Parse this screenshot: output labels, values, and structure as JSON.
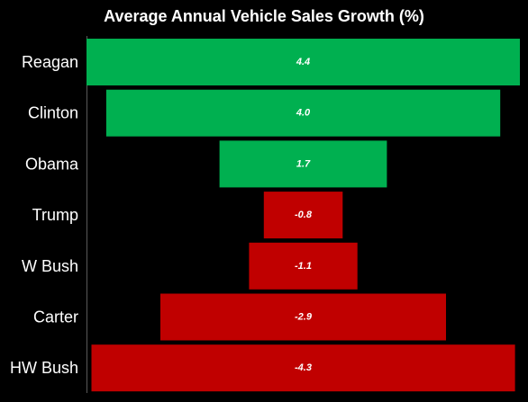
{
  "chart_data": {
    "type": "bar",
    "title": "Average Annual Vehicle Sales Growth (%)",
    "categories": [
      "Reagan",
      "Clinton",
      "Obama",
      "Trump",
      "W Bush",
      "Carter",
      "HW Bush"
    ],
    "values": [
      4.4,
      4.0,
      1.7,
      -0.8,
      -1.1,
      -2.9,
      -4.3
    ],
    "value_labels": [
      "4.4",
      "4.0",
      "1.7",
      "-0.8",
      "-1.1",
      "-2.9",
      "-4.3"
    ],
    "orientation": "horizontal-centered",
    "xlabel": "",
    "ylabel": "",
    "grid": false,
    "legend": "none",
    "colors": {
      "positive": "#00b050",
      "negative": "#c00000",
      "background": "#000000",
      "text": "#ffffff",
      "axis": "#595959"
    }
  }
}
